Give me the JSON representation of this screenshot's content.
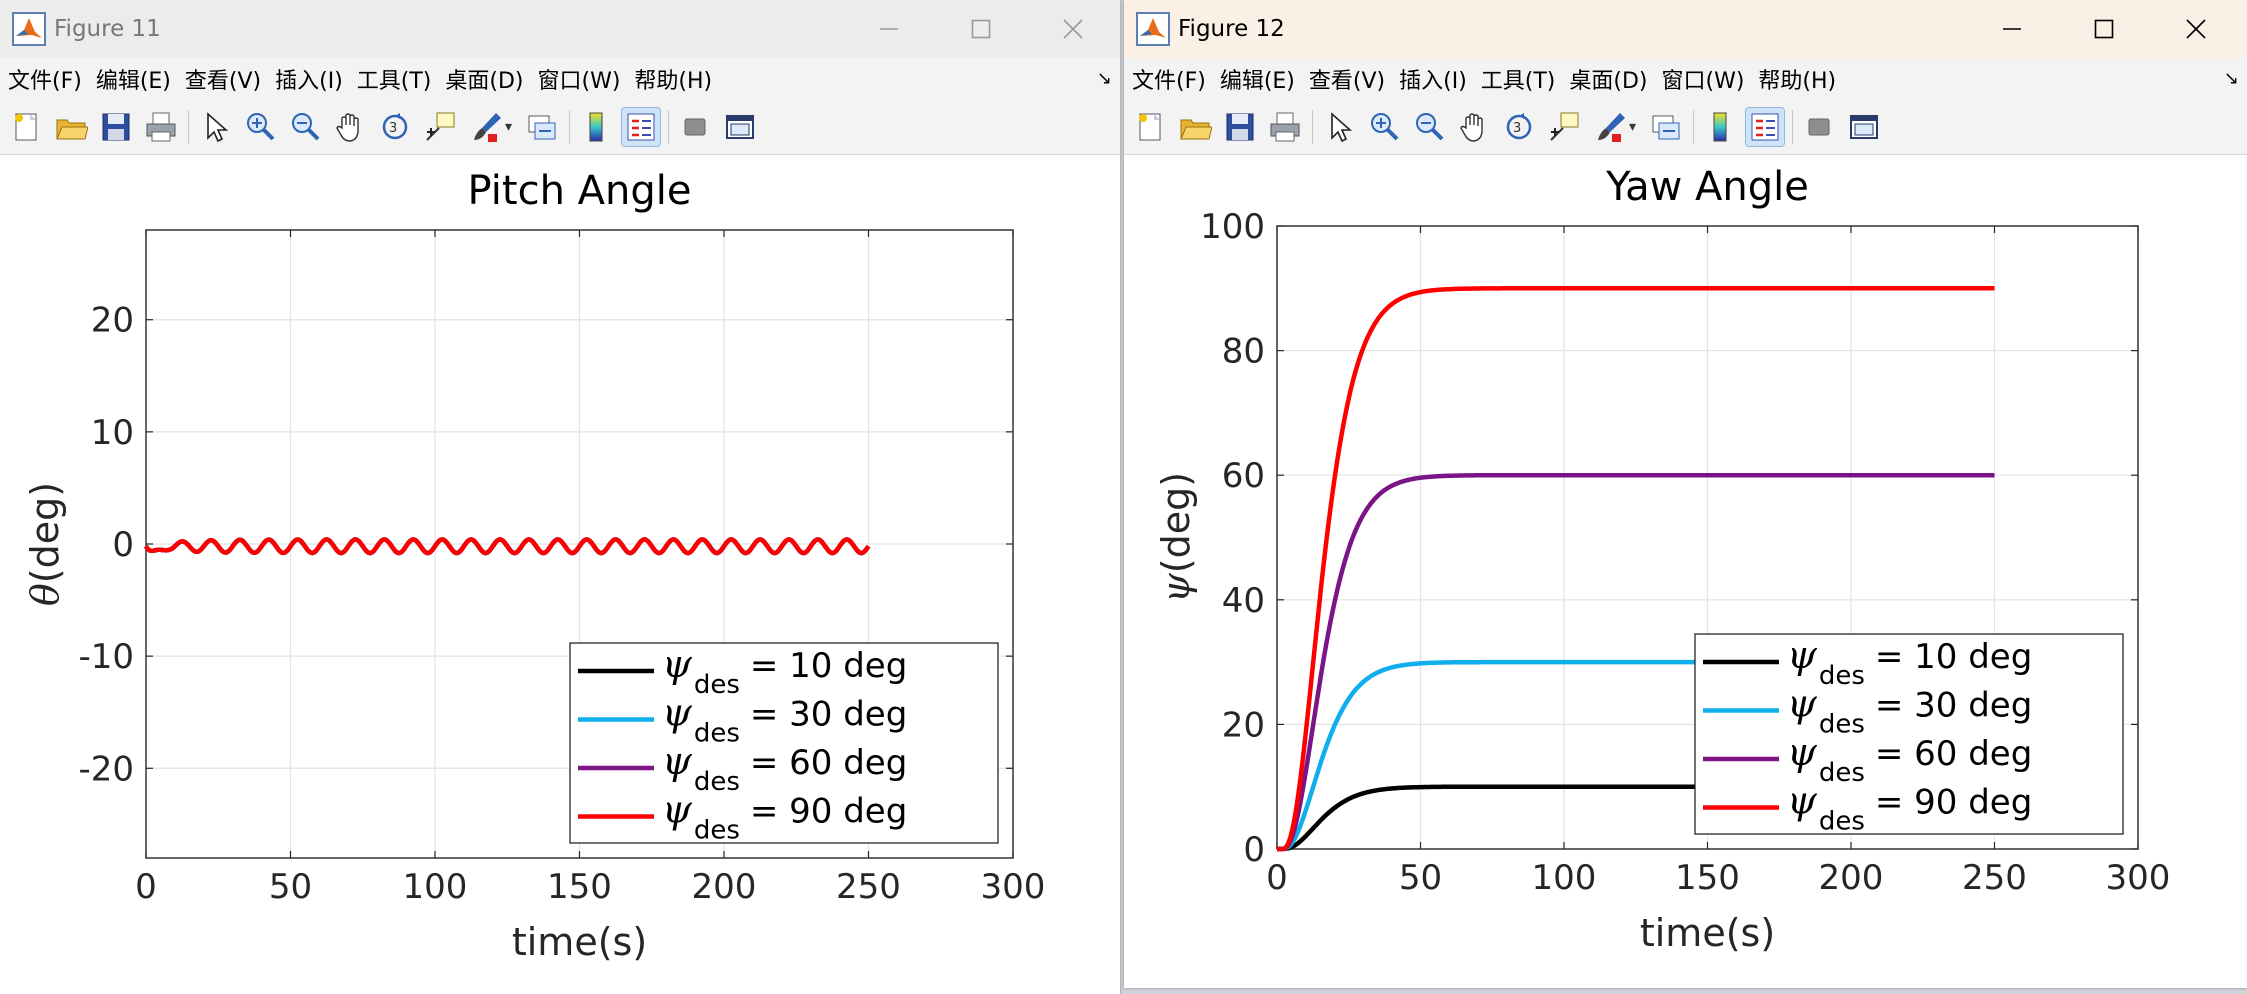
{
  "menu_labels": [
    "文件(F)",
    "编辑(E)",
    "查看(V)",
    "插入(I)",
    "工具(T)",
    "桌面(D)",
    "窗口(W)",
    "帮助(H)"
  ],
  "toolbar_icons": [
    "new-figure-icon",
    "open-file-icon",
    "save-icon",
    "print-icon",
    "select-arrow-icon",
    "zoom-in-icon",
    "zoom-out-icon",
    "pan-hand-icon",
    "rotate-3d-icon",
    "data-cursor-icon",
    "brush-icon",
    "link-plot-icon",
    "colorbar-icon",
    "legend-icon",
    "hide-plot-tools-icon",
    "show-plot-tools-icon"
  ],
  "fig11": {
    "window_title": "Figure 11",
    "chart_data": {
      "type": "line",
      "title": "Pitch Angle",
      "xlabel": "time(s)",
      "ylabel_symbol": "θ",
      "ylabel_unit": "(deg)",
      "xlim": [
        0,
        300
      ],
      "ylim": [
        -28,
        28
      ],
      "xticks": [
        0,
        50,
        100,
        150,
        200,
        250,
        300
      ],
      "yticks": [
        -20,
        -10,
        0,
        10,
        20
      ],
      "xtick_labels": [
        "0",
        "50",
        "100",
        "150",
        "200",
        "250",
        "300"
      ],
      "ytick_labels": [
        "-20",
        "-10",
        "0",
        "10",
        "20"
      ],
      "grid": true,
      "legend_location": "bottom-right",
      "t_end": 250,
      "osc_period_s": 10,
      "osc_amplitude_deg": 0.6,
      "initial_dip_deg": -1.2,
      "series": [
        {
          "name": "ψdes = 10 deg",
          "psi": "ψ",
          "sub": "des",
          "rest": "= 10 deg",
          "color": "#000000"
        },
        {
          "name": "ψdes = 30 deg",
          "psi": "ψ",
          "sub": "des",
          "rest": "= 30 deg",
          "color": "#11aeee"
        },
        {
          "name": "ψdes = 60 deg",
          "psi": "ψ",
          "sub": "des",
          "rest": "= 60 deg",
          "color": "#7b1486"
        },
        {
          "name": "ψdes = 90 deg",
          "psi": "ψ",
          "sub": "des",
          "rest": "= 90 deg",
          "color": "#ff0000"
        }
      ]
    }
  },
  "fig12": {
    "window_title": "Figure 12",
    "chart_data": {
      "type": "line",
      "title": "Yaw Angle",
      "xlabel": "time(s)",
      "ylabel_symbol": "ψ",
      "ylabel_unit": "(deg)",
      "xlim": [
        0,
        300
      ],
      "ylim": [
        0,
        100
      ],
      "xticks": [
        0,
        50,
        100,
        150,
        200,
        250,
        300
      ],
      "yticks": [
        0,
        20,
        40,
        60,
        80,
        100
      ],
      "xtick_labels": [
        "0",
        "50",
        "100",
        "150",
        "200",
        "250",
        "300"
      ],
      "ytick_labels": [
        "0",
        "20",
        "40",
        "60",
        "80",
        "100"
      ],
      "grid": true,
      "legend_location": "bottom-right",
      "t_end": 250,
      "settle_time_s": 30,
      "series": [
        {
          "name": "ψdes = 10 deg",
          "psi": "ψ",
          "sub": "des",
          "rest": "= 10 deg",
          "final": 10,
          "color": "#000000"
        },
        {
          "name": "ψdes = 30 deg",
          "psi": "ψ",
          "sub": "des",
          "rest": "= 30 deg",
          "final": 30,
          "color": "#11aeee"
        },
        {
          "name": "ψdes = 60 deg",
          "psi": "ψ",
          "sub": "des",
          "rest": "= 60 deg",
          "final": 60,
          "color": "#7b1486"
        },
        {
          "name": "ψdes = 90 deg",
          "psi": "ψ",
          "sub": "des",
          "rest": "= 90 deg",
          "final": 90,
          "color": "#ff0000"
        }
      ]
    }
  }
}
